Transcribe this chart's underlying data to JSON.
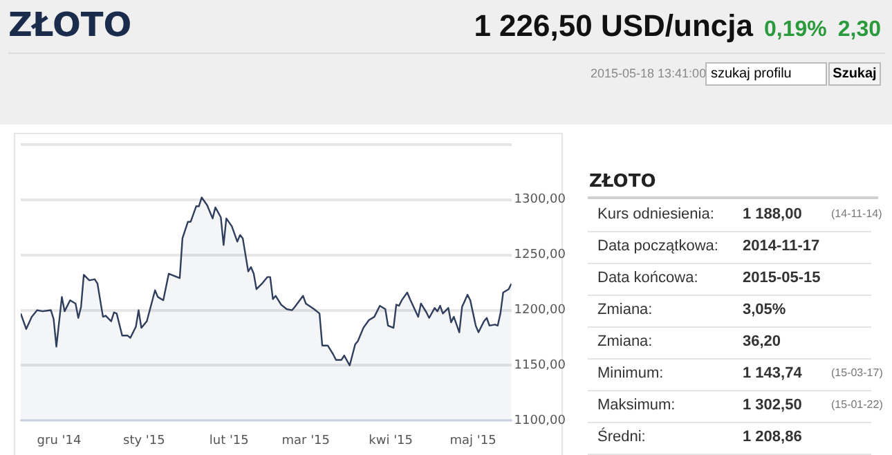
{
  "chart_data": {
    "type": "area",
    "title": "ZŁOTO",
    "annotations": [
      "1 226,50 USD/uncja",
      "0,19%",
      "2,30",
      "2015-05-18 13:41:00",
      "szukaj profilu",
      "Szukaj",
      "ZŁOTO",
      "Kurs odniesienia:",
      "1 188,00",
      "(14-11-14)",
      "Data początkowa:",
      "2014-11-17",
      "Data końcowa:",
      "2015-05-15",
      "Zmiana:",
      "3,05%",
      "Zmiana:",
      "36,20",
      "Minimum:",
      "1 143,74",
      "(15-03-17)",
      "Maksimum:",
      "1 302,50",
      "(15-01-22)",
      "Średni:",
      "1 208,86"
    ],
    "x": [
      "2014-11-17",
      "2014-11-19",
      "2014-11-21",
      "2014-11-23",
      "2014-11-25",
      "2014-11-28",
      "2014-11-29",
      "2014-11-30",
      "2014-12-02",
      "2014-12-03",
      "2014-12-05",
      "2014-12-07",
      "2014-12-08",
      "2014-12-09",
      "2014-12-10",
      "2014-12-12",
      "2014-12-14",
      "2014-12-15",
      "2014-12-17",
      "2014-12-18",
      "2014-12-20",
      "2014-12-21",
      "2014-12-22",
      "2014-12-24",
      "2014-12-26",
      "2014-12-27",
      "2014-12-29",
      "2014-12-30",
      "2014-12-31",
      "2015-01-02",
      "2015-01-05",
      "2015-01-06",
      "2015-01-08",
      "2015-01-10",
      "2015-01-13",
      "2015-01-14",
      "2015-01-15",
      "2015-01-17",
      "2015-01-18",
      "2015-01-20",
      "2015-01-21",
      "2015-01-22",
      "2015-01-24",
      "2015-01-26",
      "2015-01-27",
      "2015-01-29",
      "2015-01-30",
      "2015-01-31",
      "2015-02-02",
      "2015-02-04",
      "2015-02-05",
      "2015-02-06",
      "2015-02-08",
      "2015-02-09",
      "2015-02-10",
      "2015-02-11",
      "2015-02-13",
      "2015-02-15",
      "2015-02-16",
      "2015-02-17",
      "2015-02-18",
      "2015-02-20",
      "2015-02-22",
      "2015-02-24",
      "2015-02-25",
      "2015-02-28",
      "2015-03-01",
      "2015-03-04",
      "2015-03-06",
      "2015-03-07",
      "2015-03-09",
      "2015-03-11",
      "2015-03-12",
      "2015-03-14",
      "2015-03-15",
      "2015-03-17",
      "2015-03-19",
      "2015-03-20",
      "2015-03-22",
      "2015-03-24",
      "2015-03-26",
      "2015-03-28",
      "2015-03-30",
      "2015-03-31",
      "2015-04-02",
      "2015-04-03",
      "2015-04-04",
      "2015-04-05",
      "2015-04-07",
      "2015-04-08",
      "2015-04-11",
      "2015-04-12",
      "2015-04-14",
      "2015-04-15",
      "2015-04-17",
      "2015-04-18",
      "2015-04-19",
      "2015-04-20",
      "2015-04-22",
      "2015-04-23",
      "2015-04-24",
      "2015-04-26",
      "2015-04-27",
      "2015-04-29",
      "2015-04-30",
      "2015-05-02",
      "2015-05-03",
      "2015-05-05",
      "2015-05-06",
      "2015-05-07",
      "2015-05-09",
      "2015-05-10",
      "2015-05-11",
      "2015-05-12",
      "2015-05-14",
      "2015-05-15"
    ],
    "series": [
      {
        "color": "#2e3e5c",
        "values": [
          1197,
          1183,
          1194,
          1200,
          1199,
          1200,
          1192,
          1167,
          1212,
          1199,
          1209,
          1206,
          1193,
          1203,
          1232,
          1227,
          1228,
          1224,
          1194,
          1195,
          1190,
          1198,
          1197,
          1177,
          1177,
          1175,
          1185,
          1200,
          1184,
          1190,
          1218,
          1212,
          1209,
          1233,
          1230,
          1229,
          1265,
          1280,
          1280,
          1294,
          1294,
          1302,
          1295,
          1283,
          1293,
          1284,
          1259,
          1283,
          1276,
          1262,
          1268,
          1265,
          1235,
          1239,
          1233,
          1219,
          1224,
          1230,
          1230,
          1210,
          1213,
          1205,
          1201,
          1200,
          1203,
          1213,
          1206,
          1201,
          1197,
          1168,
          1168,
          1160,
          1155,
          1155,
          1159,
          1150,
          1169,
          1172,
          1184,
          1191,
          1194,
          1204,
          1201,
          1186,
          1184,
          1205,
          1204,
          1209,
          1216,
          1210,
          1194,
          1206,
          1198,
          1193,
          1202,
          1199,
          1204,
          1197,
          1202,
          1189,
          1194,
          1180,
          1203,
          1214,
          1209,
          1186,
          1180,
          1190,
          1193,
          1186,
          1187,
          1186,
          1197,
          1216,
          1219,
          1224
        ]
      }
    ],
    "xlim": [
      "2014-11-17",
      "2015-05-15"
    ],
    "xticks": [
      {
        "value": "2014-12-01",
        "label": "gru '14"
      },
      {
        "value": "2015-01-01",
        "label": "sty '15"
      },
      {
        "value": "2015-02-01",
        "label": "lut '15"
      },
      {
        "value": "2015-03-01",
        "label": "mar '15"
      },
      {
        "value": "2015-04-01",
        "label": "kwi '15"
      },
      {
        "value": "2015-05-01",
        "label": "maj '15"
      }
    ],
    "ylim": [
      1100,
      1350
    ],
    "yticks": [
      {
        "value": 1100,
        "label": "1100,00"
      },
      {
        "value": 1150,
        "label": "1150,00"
      },
      {
        "value": 1200,
        "label": "1200,00"
      },
      {
        "value": 1250,
        "label": "1250,00"
      },
      {
        "value": 1300,
        "label": "1300,00"
      },
      {
        "value": 1350,
        "label": null
      }
    ],
    "grid": "y",
    "legend": false
  }
}
